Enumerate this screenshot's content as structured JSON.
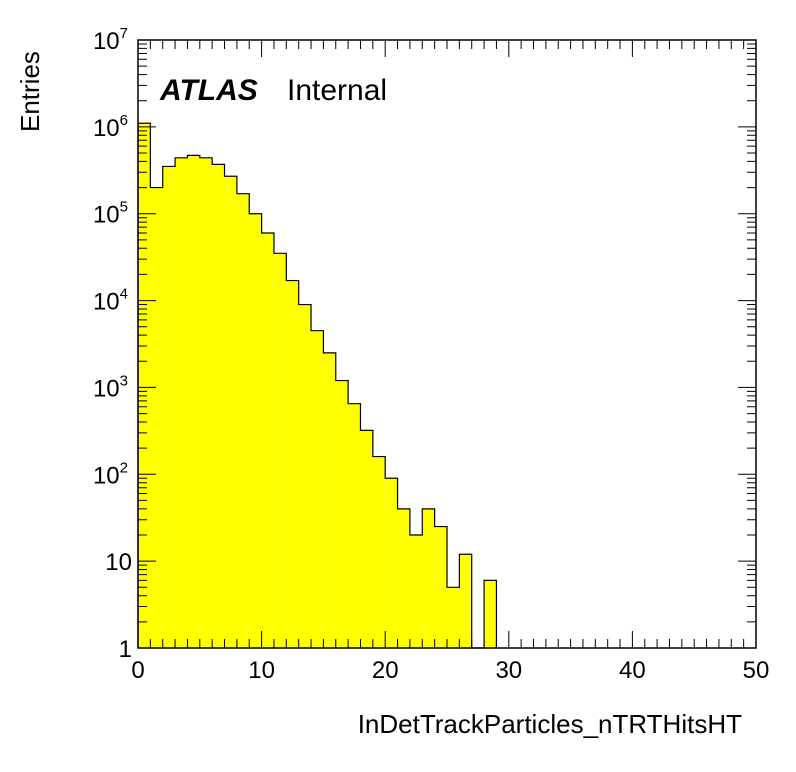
{
  "chart_data": {
    "type": "bar",
    "style": "histogram",
    "xlabel": "InDetTrackParticles_nTRTHitsHT",
    "ylabel": "Entries",
    "xlim": [
      0,
      50
    ],
    "ylim": [
      1,
      10000000
    ],
    "yscale": "log",
    "grid": false,
    "fill_color": "#ffff00",
    "line_color": "#000000",
    "bin_width": 1,
    "x_ticks": [
      0,
      10,
      20,
      30,
      40,
      50
    ],
    "y_ticks": [
      {
        "base": "1",
        "exp": ""
      },
      {
        "base": "10",
        "exp": ""
      },
      {
        "base": "10",
        "exp": "2"
      },
      {
        "base": "10",
        "exp": "3"
      },
      {
        "base": "10",
        "exp": "4"
      },
      {
        "base": "10",
        "exp": "5"
      },
      {
        "base": "10",
        "exp": "6"
      },
      {
        "base": "10",
        "exp": "7"
      }
    ],
    "values": [
      1100000,
      200000,
      350000,
      440000,
      470000,
      440000,
      370000,
      270000,
      170000,
      100000,
      60000,
      35000,
      17000,
      9000,
      4500,
      2500,
      1200,
      650,
      320,
      160,
      90,
      40,
      20,
      40,
      25,
      5,
      12,
      0,
      6
    ]
  },
  "annotations": {
    "atlas": "ATLAS",
    "internal": "Internal"
  }
}
